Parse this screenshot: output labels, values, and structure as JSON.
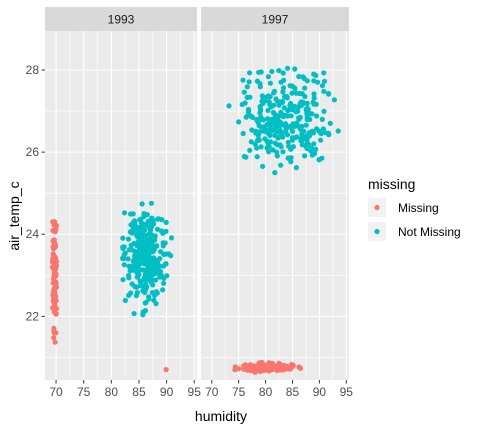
{
  "chart_data": {
    "type": "scatter",
    "facet_by": "year",
    "facets": [
      {
        "label": "1993"
      },
      {
        "label": "1997"
      }
    ],
    "xlabel": "humidity",
    "ylabel": "air_temp_c",
    "xlim": [
      68,
      95.5
    ],
    "ylim": [
      20.45,
      28.95
    ],
    "x_ticks": [
      "70",
      "75",
      "80",
      "85",
      "90",
      "95"
    ],
    "x_tick_values": [
      70,
      75,
      80,
      85,
      90,
      95
    ],
    "y_ticks": [
      "22",
      "24",
      "26",
      "28"
    ],
    "y_tick_values": [
      22,
      24,
      26,
      28
    ],
    "grid": true,
    "legend": {
      "title": "missing",
      "position": "right",
      "items": [
        {
          "label": "Missing",
          "color": "#F8766D"
        },
        {
          "label": "Not Missing",
          "color": "#00BFC4"
        }
      ]
    },
    "clusters": [
      {
        "facet": "1993",
        "series": "Missing",
        "x_range": [
          69.3,
          70.1
        ],
        "y_range": [
          20.8,
          25.0
        ],
        "approx_n": 90
      },
      {
        "facet": "1993",
        "series": "Missing",
        "x_range": [
          89.9,
          90.1
        ],
        "y_range": [
          20.65,
          20.75
        ],
        "approx_n": 1
      },
      {
        "facet": "1993",
        "series": "Not Missing",
        "x_range": [
          80.5,
          92.0
        ],
        "y_range": [
          21.9,
          25.0
        ],
        "approx_n": 300
      },
      {
        "facet": "1997",
        "series": "Missing",
        "x_range": [
          72.0,
          89.0
        ],
        "y_range": [
          20.6,
          20.9
        ],
        "approx_n": 120
      },
      {
        "facet": "1997",
        "series": "Not Missing",
        "x_range": [
          72.0,
          95.0
        ],
        "y_range": [
          25.2,
          28.5
        ],
        "approx_n": 300
      }
    ]
  }
}
